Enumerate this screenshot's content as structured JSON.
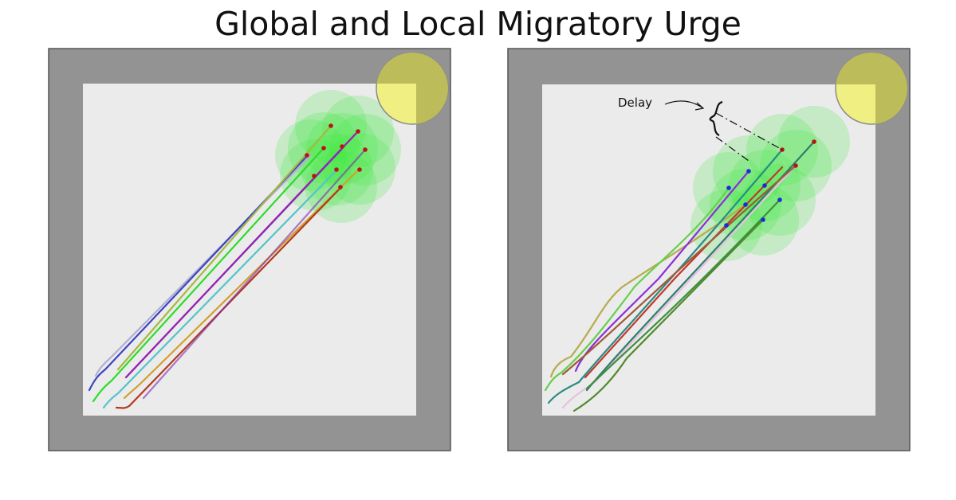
{
  "title": "Global and Local Migratory Urge",
  "colors": {
    "arena_border": "#939393",
    "arena_floor": "#ebebeb",
    "goal_fill": "#efef82",
    "goal_overlay": "#bcbc5a",
    "sensor_zone": "#3ee83e",
    "agent_dot_red": "#b81414",
    "agent_dot_blue": "#1a2ae0"
  },
  "panels": [
    {
      "name": "global-urge",
      "trail_colors": [
        "#b0b0cf",
        "#3c44c4",
        "#a5b83f",
        "#2bdc2b",
        "#56c3c8",
        "#3f78a6",
        "#9a1fb5",
        "#d1a02c",
        "#b33a1c"
      ],
      "agent_dot_color": "red"
    },
    {
      "name": "local-urge",
      "annotation": "Delay",
      "trail_colors": [
        "#b8ab4e",
        "#66d04c",
        "#8b2ed8",
        "#2c8a86",
        "#c0392b",
        "#e08c8c",
        "#3f8f3f",
        "#e4c2e0",
        "#2e7d6b",
        "#4f8a2b",
        "#a05a3a"
      ],
      "agent_dot_color": "mixed"
    }
  ]
}
